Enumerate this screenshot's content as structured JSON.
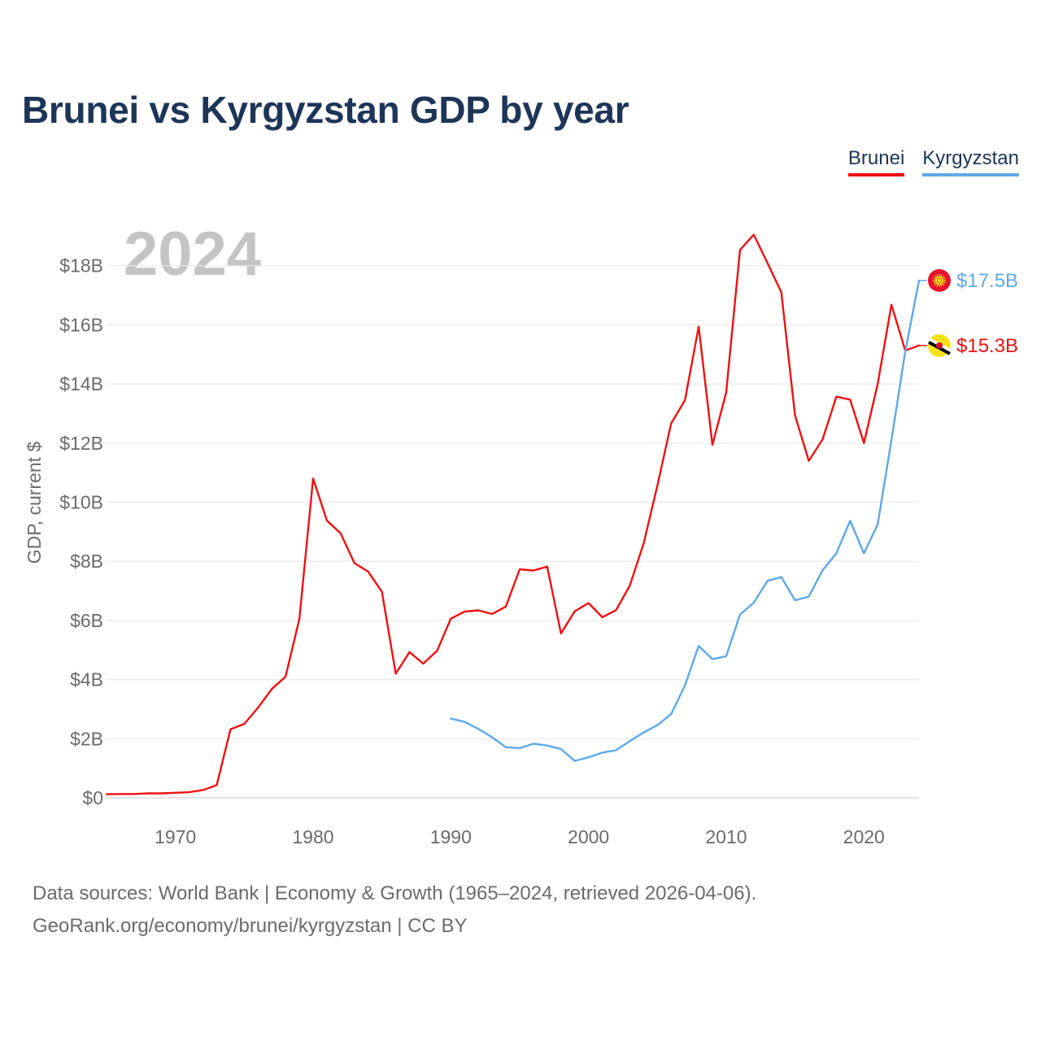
{
  "title": "Brunei vs Kyrgyzstan GDP by year",
  "legend": {
    "brunei": "Brunei",
    "kyrgyzstan": "Kyrgyzstan"
  },
  "source": {
    "line1": "Data sources: World Bank | Economy & Growth (1965–2024, retrieved 2026-04-06).",
    "line2": "GeoRank.org/economy/brunei/kyrgyzstan | CC BY"
  },
  "colors": {
    "brunei": "#ee1111",
    "kyrgyzstan": "#5fa8e8",
    "year_watermark": "#c4c4c4"
  },
  "chart_data": {
    "type": "line",
    "title": "Brunei vs Kyrgyzstan GDP by year",
    "xlabel": "",
    "ylabel": "GDP, current $",
    "xlim": [
      1965,
      2024
    ],
    "ylim": [
      0,
      19.5
    ],
    "x_ticks": [
      1970,
      1980,
      1990,
      2000,
      2010,
      2020
    ],
    "y_ticks": [
      {
        "value": 0,
        "label": "$0"
      },
      {
        "value": 2,
        "label": "$2B"
      },
      {
        "value": 4,
        "label": "$4B"
      },
      {
        "value": 6,
        "label": "$6B"
      },
      {
        "value": 8,
        "label": "$8B"
      },
      {
        "value": 10,
        "label": "$10B"
      },
      {
        "value": 12,
        "label": "$12B"
      },
      {
        "value": 14,
        "label": "$14B"
      },
      {
        "value": 16,
        "label": "$16B"
      },
      {
        "value": 18,
        "label": "$18B"
      }
    ],
    "year_watermark": "2024",
    "grid": true,
    "legend_position": "top-right",
    "series": [
      {
        "name": "Brunei",
        "color": "#ee1111",
        "end_label": "$15.3B",
        "flag": "brunei-flag",
        "points": [
          [
            1965,
            0.12
          ],
          [
            1966,
            0.13
          ],
          [
            1967,
            0.13
          ],
          [
            1968,
            0.15
          ],
          [
            1969,
            0.15
          ],
          [
            1970,
            0.17
          ],
          [
            1971,
            0.19
          ],
          [
            1972,
            0.26
          ],
          [
            1973,
            0.43
          ],
          [
            1974,
            2.32
          ],
          [
            1975,
            2.5
          ],
          [
            1976,
            3.05
          ],
          [
            1977,
            3.68
          ],
          [
            1978,
            4.1
          ],
          [
            1979,
            6.05
          ],
          [
            1980,
            10.8
          ],
          [
            1981,
            9.38
          ],
          [
            1982,
            8.95
          ],
          [
            1983,
            7.94
          ],
          [
            1984,
            7.65
          ],
          [
            1985,
            6.97
          ],
          [
            1986,
            4.2
          ],
          [
            1987,
            4.93
          ],
          [
            1988,
            4.54
          ],
          [
            1989,
            4.97
          ],
          [
            1990,
            6.06
          ],
          [
            1991,
            6.3
          ],
          [
            1992,
            6.34
          ],
          [
            1993,
            6.22
          ],
          [
            1994,
            6.47
          ],
          [
            1995,
            7.73
          ],
          [
            1996,
            7.69
          ],
          [
            1997,
            7.82
          ],
          [
            1998,
            5.56
          ],
          [
            1999,
            6.31
          ],
          [
            2000,
            6.59
          ],
          [
            2001,
            6.11
          ],
          [
            2002,
            6.35
          ],
          [
            2003,
            7.18
          ],
          [
            2004,
            8.6
          ],
          [
            2005,
            10.56
          ],
          [
            2006,
            12.66
          ],
          [
            2007,
            13.45
          ],
          [
            2008,
            15.94
          ],
          [
            2009,
            11.94
          ],
          [
            2010,
            13.71
          ],
          [
            2011,
            18.53
          ],
          [
            2012,
            19.05
          ],
          [
            2013,
            18.09
          ],
          [
            2014,
            17.1
          ],
          [
            2015,
            12.93
          ],
          [
            2016,
            11.4
          ],
          [
            2017,
            12.13
          ],
          [
            2018,
            13.57
          ],
          [
            2019,
            13.47
          ],
          [
            2020,
            12.0
          ],
          [
            2021,
            14.0
          ],
          [
            2022,
            16.68
          ],
          [
            2023,
            15.13
          ],
          [
            2024,
            15.3
          ]
        ]
      },
      {
        "name": "Kyrgyzstan",
        "color": "#5fa8e8",
        "end_label": "$17.5B",
        "flag": "kyrgyzstan-flag",
        "points": [
          [
            1990,
            2.68
          ],
          [
            1991,
            2.57
          ],
          [
            1992,
            2.33
          ],
          [
            1993,
            2.05
          ],
          [
            1994,
            1.71
          ],
          [
            1995,
            1.68
          ],
          [
            1996,
            1.83
          ],
          [
            1997,
            1.77
          ],
          [
            1998,
            1.65
          ],
          [
            1999,
            1.25
          ],
          [
            2000,
            1.37
          ],
          [
            2001,
            1.53
          ],
          [
            2002,
            1.61
          ],
          [
            2003,
            1.92
          ],
          [
            2004,
            2.21
          ],
          [
            2005,
            2.46
          ],
          [
            2006,
            2.83
          ],
          [
            2007,
            3.8
          ],
          [
            2008,
            5.14
          ],
          [
            2009,
            4.69
          ],
          [
            2010,
            4.79
          ],
          [
            2011,
            6.2
          ],
          [
            2012,
            6.6
          ],
          [
            2013,
            7.34
          ],
          [
            2014,
            7.47
          ],
          [
            2015,
            6.68
          ],
          [
            2016,
            6.81
          ],
          [
            2017,
            7.7
          ],
          [
            2018,
            8.27
          ],
          [
            2019,
            9.37
          ],
          [
            2020,
            8.27
          ],
          [
            2021,
            9.25
          ],
          [
            2022,
            12.1
          ],
          [
            2023,
            15.1
          ],
          [
            2024,
            17.5
          ]
        ]
      }
    ]
  }
}
